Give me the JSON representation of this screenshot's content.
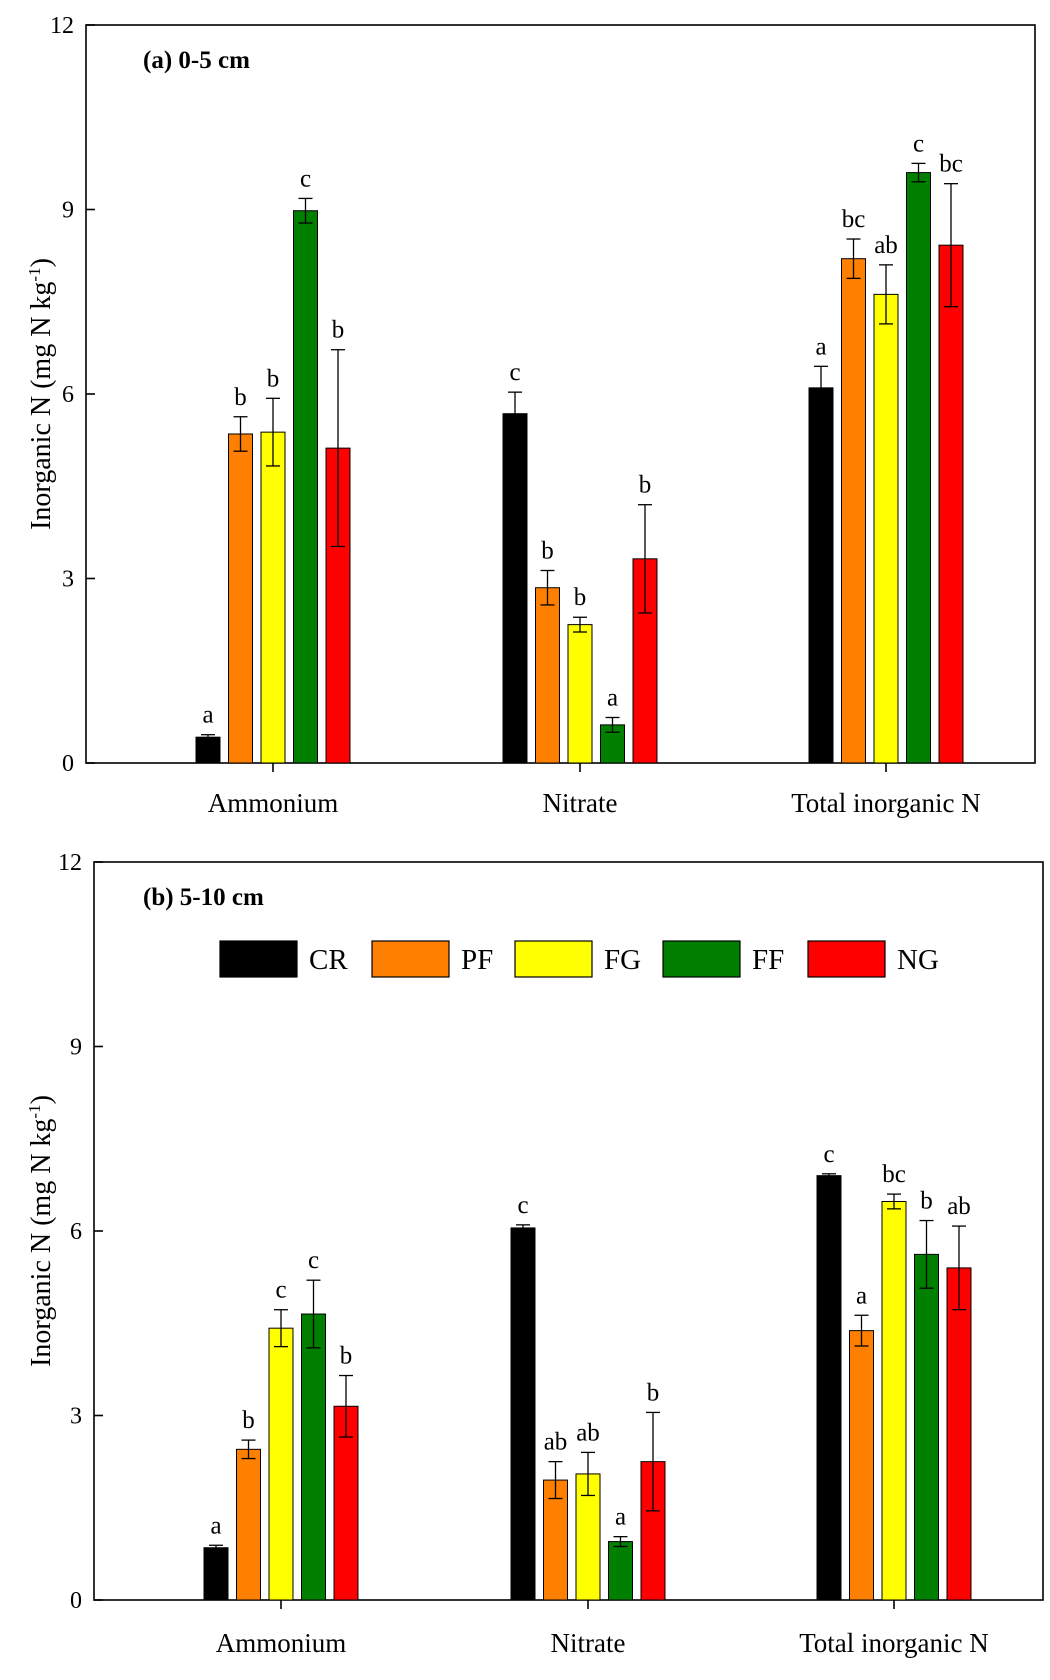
{
  "figure": {
    "legend_items": [
      "CR",
      "PF",
      "FG",
      "FF",
      "NG"
    ]
  },
  "colors": {
    "CR": "#000000",
    "PF": "#ff7f00",
    "FG": "#ffff00",
    "FF": "#007f00",
    "NG": "#ff0000"
  },
  "chart_data": [
    {
      "type": "bar",
      "title": "(a) 0-5 cm",
      "ylabel": "Inorganic N (mg N kg-1)",
      "ylabel_parts": {
        "main": "Inorganic N (mg N kg",
        "sup": "-1",
        "close": ")"
      },
      "ylim": [
        0,
        12
      ],
      "yticks": [
        "0",
        "3",
        "6",
        "9",
        "12"
      ],
      "categories": [
        "Ammonium",
        "Nitrate",
        "Total inorganic N"
      ],
      "grid": false,
      "legend": "none",
      "series": [
        {
          "name": "CR",
          "values": [
            0.42,
            5.68,
            6.1
          ],
          "errors": [
            0.04,
            0.35,
            0.35
          ],
          "labels": [
            "a",
            "c",
            "a"
          ]
        },
        {
          "name": "PF",
          "values": [
            5.35,
            2.85,
            8.2
          ],
          "errors": [
            0.28,
            0.28,
            0.32
          ],
          "labels": [
            "b",
            "b",
            "bc"
          ]
        },
        {
          "name": "FG",
          "values": [
            5.38,
            2.25,
            7.62
          ],
          "errors": [
            0.55,
            0.12,
            0.48
          ],
          "labels": [
            "b",
            "b",
            "ab"
          ]
        },
        {
          "name": "FF",
          "values": [
            8.98,
            0.62,
            9.6
          ],
          "errors": [
            0.2,
            0.12,
            0.15
          ],
          "labels": [
            "c",
            "a",
            "c"
          ]
        },
        {
          "name": "NG",
          "values": [
            5.12,
            3.32,
            8.42
          ],
          "errors": [
            1.6,
            0.88,
            1.0
          ],
          "labels": [
            "b",
            "b",
            "bc"
          ]
        }
      ]
    },
    {
      "type": "bar",
      "title": "(b) 5-10 cm",
      "ylabel": "Inorganic N (mg N kg-1)",
      "ylabel_parts": {
        "main": "Inorganic N (mg N kg",
        "sup": "-1",
        "close": ")"
      },
      "ylim": [
        0,
        12
      ],
      "yticks": [
        "0",
        "3",
        "6",
        "9",
        "12"
      ],
      "categories": [
        "Ammonium",
        "Nitrate",
        "Total inorganic N"
      ],
      "grid": false,
      "legend": "top",
      "series": [
        {
          "name": "CR",
          "values": [
            0.85,
            6.05,
            6.9
          ],
          "errors": [
            0.04,
            0.05,
            0.03
          ],
          "labels": [
            "a",
            "c",
            "c"
          ]
        },
        {
          "name": "PF",
          "values": [
            2.45,
            1.95,
            4.38
          ],
          "errors": [
            0.15,
            0.3,
            0.25
          ],
          "labels": [
            "b",
            "ab",
            "a"
          ]
        },
        {
          "name": "FG",
          "values": [
            4.42,
            2.05,
            6.48
          ],
          "errors": [
            0.3,
            0.35,
            0.12
          ],
          "labels": [
            "c",
            "ab",
            "bc"
          ]
        },
        {
          "name": "FF",
          "values": [
            4.65,
            0.95,
            5.62
          ],
          "errors": [
            0.55,
            0.08,
            0.55
          ],
          "labels": [
            "c",
            "a",
            "b"
          ]
        },
        {
          "name": "NG",
          "values": [
            3.15,
            2.25,
            5.4
          ],
          "errors": [
            0.5,
            0.8,
            0.68
          ],
          "labels": [
            "b",
            "b",
            "ab"
          ]
        }
      ]
    }
  ]
}
